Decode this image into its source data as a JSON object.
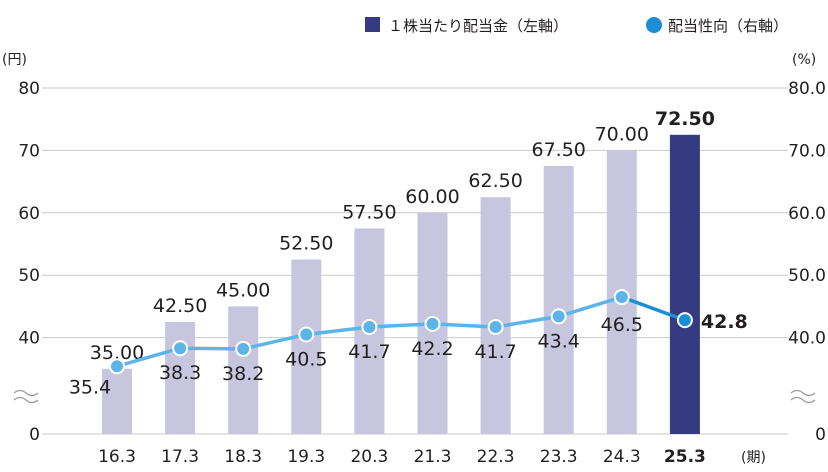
{
  "chart_data": {
    "type": "bar+line",
    "categories": [
      "16.3",
      "17.3",
      "18.3",
      "19.3",
      "20.3",
      "21.3",
      "22.3",
      "23.3",
      "24.3",
      "25.3"
    ],
    "series": [
      {
        "name": "１株当たり配当金（左軸）",
        "axis": "left",
        "type": "bar",
        "values": [
          35.0,
          42.5,
          45.0,
          52.5,
          57.5,
          60.0,
          62.5,
          67.5,
          70.0,
          72.5
        ],
        "labels": [
          "35.00",
          "42.50",
          "45.00",
          "52.50",
          "57.50",
          "60.00",
          "62.50",
          "67.50",
          "70.00",
          "72.50"
        ],
        "color": "#c8c6de",
        "highlight_color": "#363a80"
      },
      {
        "name": "配当性向（右軸）",
        "axis": "right",
        "type": "line",
        "values": [
          35.4,
          38.3,
          38.2,
          40.5,
          41.7,
          42.2,
          41.7,
          43.4,
          46.5,
          42.8
        ],
        "labels": [
          "35.4",
          "38.3",
          "38.2",
          "40.5",
          "41.7",
          "42.2",
          "41.7",
          "43.4",
          "46.5",
          "42.8"
        ],
        "color": "#5bb5e8",
        "highlight_color": "#1a8fd6"
      }
    ],
    "highlight_index": 9,
    "left_axis": {
      "unit": "(円)",
      "ticks": [
        0,
        40,
        50,
        60,
        70,
        80
      ],
      "tick_labels": [
        "0",
        "40",
        "50",
        "60",
        "70",
        "80"
      ],
      "broken_range": [
        0,
        30
      ]
    },
    "right_axis": {
      "unit": "(%)",
      "ticks": [
        0,
        40,
        50,
        60,
        70,
        80
      ],
      "tick_labels": [
        "0",
        "40.0",
        "50.0",
        "60.0",
        "70.0",
        "80.0"
      ],
      "broken_range": [
        0,
        30
      ]
    },
    "x_unit": "(期)",
    "legend": [
      "１株当たり配当金（左軸）",
      "配当性向（右軸）"
    ],
    "legend_position": "top-right"
  }
}
